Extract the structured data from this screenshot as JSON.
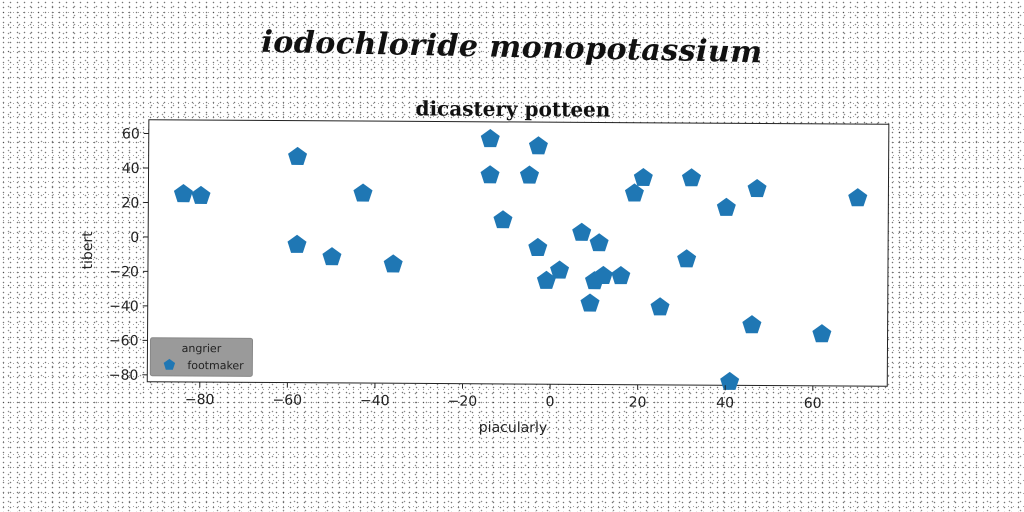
{
  "page_title": "iodochloride monopotassium",
  "chart_data": {
    "type": "scatter",
    "title": "dicastery potteen",
    "xlabel": "piacularly",
    "ylabel": "tibert",
    "xlim": [
      -92,
      77
    ],
    "ylim": [
      -84,
      68
    ],
    "xticks": [
      -80,
      -60,
      -40,
      -20,
      0,
      20,
      40,
      60
    ],
    "yticks": [
      60,
      40,
      20,
      0,
      -20,
      -40,
      -60,
      -80
    ],
    "xtick_labels": [
      "−80",
      "−60",
      "−40",
      "−20",
      "0",
      "20",
      "40",
      "60"
    ],
    "ytick_labels": [
      "60",
      "40",
      "20",
      "0",
      "−20",
      "−40",
      "−60",
      "−80"
    ],
    "legend": {
      "title": "angrier",
      "placement": "lower-left"
    },
    "series": [
      {
        "name": "footmaker",
        "color": "#1f77b4",
        "marker": "pentagon",
        "points": [
          [
            -84,
            25
          ],
          [
            -80,
            24
          ],
          [
            -58,
            47
          ],
          [
            -58,
            -4
          ],
          [
            -50,
            -11
          ],
          [
            -43,
            26
          ],
          [
            -36,
            -15
          ],
          [
            -14,
            58
          ],
          [
            -14,
            37
          ],
          [
            -11,
            11
          ],
          [
            -5,
            37
          ],
          [
            -3,
            54
          ],
          [
            -3,
            -5
          ],
          [
            -1,
            -24
          ],
          [
            2,
            -18
          ],
          [
            7,
            4
          ],
          [
            9,
            -37
          ],
          [
            10,
            -24
          ],
          [
            11,
            -2
          ],
          [
            12,
            -21
          ],
          [
            16,
            -21
          ],
          [
            19,
            27
          ],
          [
            21,
            36
          ],
          [
            25,
            -39
          ],
          [
            31,
            -11
          ],
          [
            32,
            36
          ],
          [
            40,
            19
          ],
          [
            41,
            -82
          ],
          [
            46,
            -49
          ],
          [
            47,
            30
          ],
          [
            62,
            -54
          ],
          [
            70,
            25
          ]
        ]
      }
    ]
  }
}
